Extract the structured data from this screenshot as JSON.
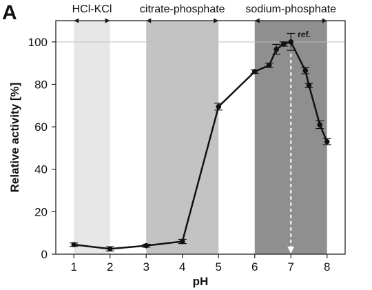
{
  "panel_label": "A",
  "chart_data": {
    "type": "line",
    "xlabel": "pH",
    "ylabel": "Relative activity [%]",
    "xlim": [
      0.5,
      8.5
    ],
    "ylim": [
      0,
      110
    ],
    "x_ticks": [
      1,
      2,
      3,
      4,
      5,
      6,
      7,
      8
    ],
    "y_ticks": [
      0,
      20,
      40,
      60,
      80,
      100
    ],
    "x_tick_labels": [
      "1",
      "2",
      "3",
      "4",
      "5",
      "6",
      "7",
      "8"
    ],
    "y_tick_labels": [
      "0",
      "20",
      "40",
      "60",
      "80",
      "100"
    ],
    "reference_line_y": 100,
    "buffer_regions": [
      {
        "label": "HCl-KCl",
        "x_start": 1,
        "x_end": 2,
        "color": "#e7e7e7"
      },
      {
        "label": "citrate-phosphate",
        "x_start": 3,
        "x_end": 5,
        "color": "#c3c3c3"
      },
      {
        "label": "sodium-phosphate",
        "x_start": 6,
        "x_end": 8,
        "color": "#8f8f8f"
      }
    ],
    "annotations": [
      {
        "text": "ref.",
        "x": 7,
        "y": 100
      }
    ],
    "series": [
      {
        "x": [
          1,
          2,
          3,
          4,
          5,
          6,
          6.4,
          6.6,
          6.8,
          7,
          7.4,
          7.5,
          7.8,
          8
        ],
        "values": [
          4.5,
          2.5,
          4,
          6,
          69.5,
          86,
          89,
          96.5,
          99,
          100,
          86.5,
          79.5,
          61,
          53
        ],
        "errors": [
          0.8,
          1,
          0.7,
          1,
          1.6,
          0.8,
          1,
          2.3,
          1,
          4,
          1.5,
          1,
          1.8,
          1.4
        ]
      }
    ]
  }
}
